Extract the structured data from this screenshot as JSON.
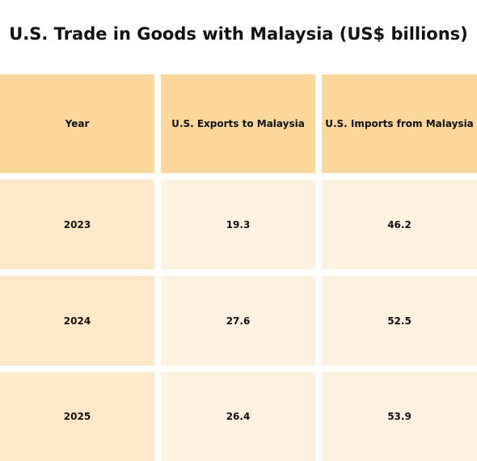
{
  "title": "U.S. Trade in Goods with Malaysia (US$ billions)",
  "table": {
    "header": [
      "Year",
      "U.S. Exports to Malaysia",
      "U.S. Imports from Malaysia"
    ],
    "rows": [
      [
        "2023",
        "19.3",
        "46.2"
      ],
      [
        "2024",
        "27.6",
        "52.5"
      ],
      [
        "2025",
        "26.4",
        "53.9"
      ]
    ]
  }
}
